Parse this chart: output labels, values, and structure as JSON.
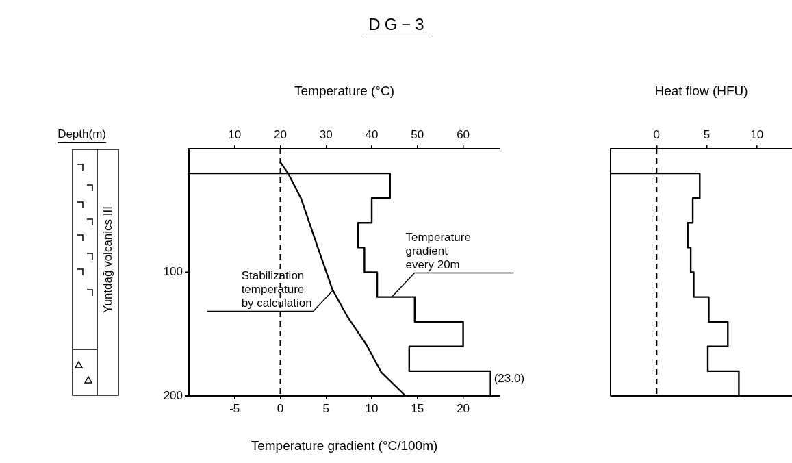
{
  "chart_data": [
    {
      "type": "line",
      "title": "DG−3",
      "xlabel": "Temperature gradient (°C/100m)",
      "x2label": "Temperature (°C)",
      "ylabel": "Depth(m)",
      "xlim": [
        -10,
        24
      ],
      "xticks": [
        -5,
        0,
        5,
        10,
        15,
        20
      ],
      "x2lim": [
        0,
        68
      ],
      "x2ticks": [
        10,
        20,
        30,
        40,
        50,
        60
      ],
      "ylim": [
        200,
        0
      ],
      "yticks": [
        100,
        200
      ],
      "ref_lines": [
        {
          "axis": "x",
          "value": 0,
          "line_style": "dashed"
        }
      ],
      "annotations": [
        "Yuntdağ volcanics III",
        {
          "text": "Stabilization\ntemperature\nby calculation",
          "x": 5.7,
          "y": 115
        },
        {
          "text": "Temperature\ngradient\nevery 20m",
          "x": 12.2,
          "y": 120
        },
        {
          "text": "(23.0)",
          "x": 23,
          "y": 186
        }
      ],
      "series": [
        {
          "type": "line",
          "axis": "x2",
          "color": "#000000",
          "x": [
            20,
            21.7,
            24.5,
            28.2,
            31.4,
            34.7,
            38.9,
            42.1,
            47.4
          ],
          "values": [
            11,
            20,
            40,
            80,
            114,
            136,
            159,
            181,
            200
          ]
        },
        {
          "type": "step",
          "color": "#000000",
          "x": [
            -10,
            12,
            10,
            8.5,
            9.2,
            10.6,
            14.7,
            20,
            14.1,
            23
          ],
          "values": [
            20,
            40,
            60,
            80,
            100,
            120,
            140,
            160,
            180,
            200
          ]
        }
      ]
    },
    {
      "type": "step",
      "xlabel": "Heat flow (HFU)",
      "xlim": [
        -4.6,
        13.5
      ],
      "xticks": [
        0,
        5,
        10
      ],
      "ylim": [
        200,
        0
      ],
      "tick_labels": "x",
      "ref_lines": [
        {
          "axis": "x",
          "value": 0,
          "line_style": "dashed"
        }
      ],
      "series": [
        {
          "color": "#000000",
          "x": [
            -4.6,
            4.3,
            3.6,
            3.1,
            3.4,
            3.7,
            5.2,
            7.1,
            5.1,
            8.2
          ],
          "values": [
            20,
            40,
            60,
            80,
            100,
            120,
            140,
            160,
            180,
            200
          ]
        }
      ]
    }
  ]
}
